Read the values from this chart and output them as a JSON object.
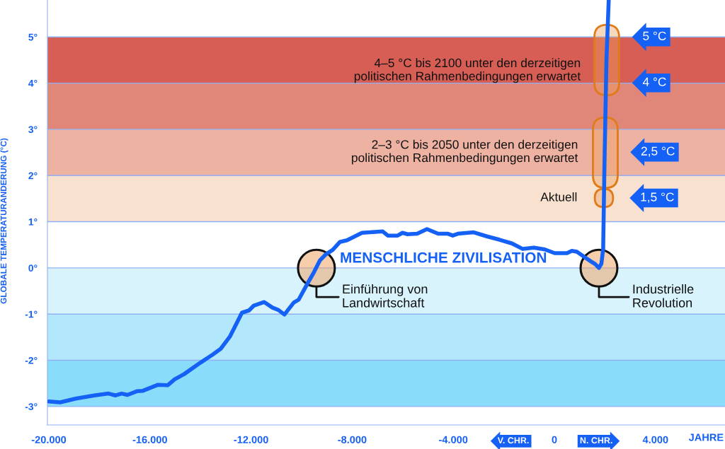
{
  "chart_data": {
    "type": "line",
    "xlabel": "JAHRE",
    "ylabel": "GLOBALE TEMPERATURÄNDERUNG (°C)",
    "xlim": [
      -20056,
      6750
    ],
    "ylim": [
      -3.4,
      5.8
    ],
    "xticks": [
      {
        "value": -20000,
        "label": "-20.000"
      },
      {
        "value": -16000,
        "label": "-16.000"
      },
      {
        "value": -12000,
        "label": "-12.000"
      },
      {
        "value": -8000,
        "label": "-8.000"
      },
      {
        "value": -4000,
        "label": "-4.000"
      },
      0,
      {
        "value": 4000,
        "label": "4.000"
      }
    ],
    "yticks": [
      {
        "value": -3,
        "label": "-3°"
      },
      {
        "value": -2,
        "label": "-2°"
      },
      {
        "value": -1,
        "label": "-1°"
      },
      {
        "value": 0,
        "label": "0°"
      },
      {
        "value": 1,
        "label": "1°"
      },
      {
        "value": 2,
        "label": "2°"
      },
      {
        "value": 3,
        "label": "3°"
      },
      {
        "value": 4,
        "label": "4°"
      },
      {
        "value": 5,
        "label": "5°"
      }
    ],
    "grid": "y",
    "series": [
      {
        "color": "#1560f5",
        "x": [
          -20000,
          -19550,
          -18940,
          -18200,
          -17640,
          -17360,
          -17120,
          -16890,
          -16520,
          -16280,
          -15680,
          -15300,
          -15020,
          -14650,
          -14000,
          -13530,
          -13200,
          -12830,
          -12600,
          -12360,
          -12080,
          -11900,
          -11480,
          -11150,
          -10920,
          -10680,
          -10310,
          -10120,
          -9750,
          -9510,
          -9280,
          -9050,
          -8770,
          -8490,
          -8200,
          -7610,
          -6790,
          -6590,
          -6200,
          -6010,
          -5810,
          -5430,
          -5040,
          -4600,
          -4210,
          -4020,
          -3820,
          -3190,
          -2650,
          -2170,
          -1680,
          -1250,
          -810,
          -380,
          10,
          500,
          690,
          890,
          1180,
          1420,
          1620,
          1760,
          1860,
          1930,
          1960,
          1990,
          2060,
          2150
        ],
        "values": [
          -2.89,
          -2.91,
          -2.83,
          -2.76,
          -2.72,
          -2.76,
          -2.72,
          -2.75,
          -2.67,
          -2.66,
          -2.53,
          -2.54,
          -2.41,
          -2.3,
          -2.05,
          -1.88,
          -1.75,
          -1.48,
          -1.23,
          -0.97,
          -0.92,
          -0.82,
          -0.74,
          -0.86,
          -0.91,
          -1.01,
          -0.75,
          -0.69,
          -0.32,
          -0.09,
          0.16,
          0.29,
          0.39,
          0.56,
          0.6,
          0.76,
          0.79,
          0.7,
          0.7,
          0.76,
          0.73,
          0.74,
          0.84,
          0.74,
          0.74,
          0.7,
          0.74,
          0.77,
          0.68,
          0.61,
          0.53,
          0.41,
          0.44,
          0.4,
          0.32,
          0.32,
          0.37,
          0.35,
          0.24,
          0.15,
          0.08,
          0.0,
          0.09,
          0.41,
          1.5,
          2.5,
          4.5,
          5.8
        ]
      }
    ],
    "bands": [
      {
        "axis": "y",
        "from": -3,
        "to": -2,
        "color": "#8adcfb"
      },
      {
        "axis": "y",
        "from": -2,
        "to": -1,
        "color": "#b3e8fc"
      },
      {
        "axis": "y",
        "from": -1,
        "to": 0,
        "color": "#d8f3fc"
      },
      {
        "axis": "y",
        "from": 1,
        "to": 2,
        "color": "#f9e1cf"
      },
      {
        "axis": "y",
        "from": 2,
        "to": 3,
        "color": "#eeb2a2"
      },
      {
        "axis": "y",
        "from": 3,
        "to": 4,
        "color": "#e1877a"
      },
      {
        "axis": "y",
        "from": 4,
        "to": 5,
        "color": "#d75e54"
      }
    ],
    "annotations": [
      "MENSCHLICHE ZIVILISATION",
      "Einführung von\nLandwirtschaft",
      "Industrielle\nRevolution",
      "4–5 °C bis 2100 unter den derzeitigen\npolitischen Rahmenbedingungen erwartet",
      "2–3 °C bis 2050 unter den derzeitigen\npolitischen Rahmenbedingungen erwartet",
      "Aktuell",
      "5 °C",
      "4 °C",
      "2,5 °C",
      "1,5 °C",
      "V. CHR.",
      "N. CHR."
    ]
  }
}
